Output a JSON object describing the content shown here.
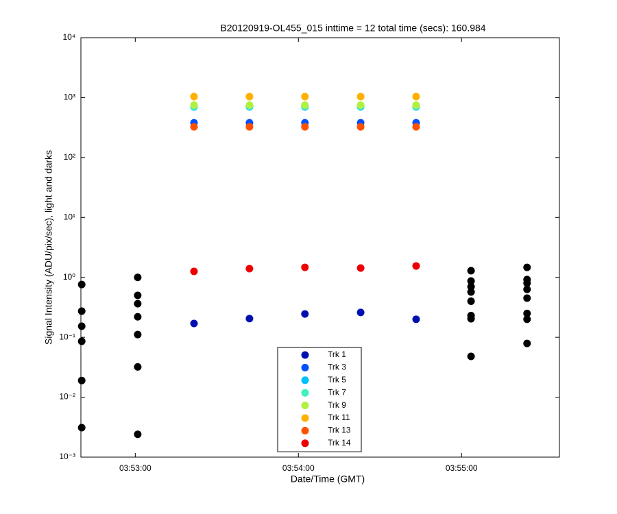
{
  "chart_data": {
    "type": "scatter",
    "title": "B20120919-OL455_015 inttime = 12 total time (secs): 160.984",
    "x_label": "Date/Time (GMT)",
    "y_label": "Signal Intensity (ADU/pix/sec), light and darks",
    "log_y": true,
    "grid": false,
    "legend": "bottom",
    "xlim": [
      13960,
      14136
    ],
    "xticks": [
      {
        "value": 13980,
        "label": "03:53:00"
      },
      {
        "value": 14040,
        "label": "03:54:00"
      },
      {
        "value": 14100,
        "label": "03:55:00"
      }
    ],
    "ylim": [
      0.001,
      10000
    ],
    "yticks": [
      {
        "value": 0.001,
        "label": "10⁻³"
      },
      {
        "value": 0.01,
        "label": "10⁻²"
      },
      {
        "value": 0.1,
        "label": "10⁻¹"
      },
      {
        "value": 1,
        "label": "10⁰"
      },
      {
        "value": 10,
        "label": "10¹"
      },
      {
        "value": 100,
        "label": "10²"
      },
      {
        "value": 1000,
        "label": "10³"
      },
      {
        "value": 10000,
        "label": "10⁴"
      }
    ],
    "series": [
      {
        "color": "#000000",
        "x": [
          13960.3,
          13960.3,
          13960.3,
          13960.3,
          13960.3,
          13960.3,
          13980.9,
          13980.9,
          13980.9,
          13980.9,
          13980.9,
          13980.9,
          13980.9,
          14103.5,
          14103.5,
          14103.5,
          14103.5,
          14103.5,
          14103.5,
          14103.5,
          14103.5,
          14124.1,
          14124.1,
          14124.1,
          14124.1,
          14124.1,
          14124.1,
          14124.1,
          14124.1
        ],
        "values": [
          0.76,
          0.273,
          0.153,
          0.0857,
          0.019,
          0.0031,
          1.0,
          0.5,
          0.364,
          0.22,
          0.111,
          0.032,
          0.0024,
          1.29,
          0.87,
          0.7,
          0.57,
          0.4,
          0.23,
          0.204,
          0.048,
          1.47,
          0.92,
          0.8,
          0.63,
          0.45,
          0.25,
          0.2,
          0.079
        ]
      },
      {
        "name": "Trk 1",
        "color": "#0010b0",
        "x": [
          14001.6,
          14022,
          14042.4,
          14062.9,
          14083.3
        ],
        "values": [
          0.17,
          0.205,
          0.245,
          0.26,
          0.2
        ]
      },
      {
        "name": "Trk 3",
        "color": "#0050ff",
        "x": [
          14001.6,
          14022,
          14042.4,
          14062.9,
          14083.3
        ],
        "values": [
          380,
          380,
          380,
          380,
          380
        ]
      },
      {
        "name": "Trk 5",
        "color": "#00c0ff",
        "x": [
          14001.6,
          14022,
          14042.4,
          14062.9,
          14083.3
        ],
        "values": [
          700,
          700,
          700,
          700,
          700
        ]
      },
      {
        "name": "Trk 7",
        "color": "#40f0c0",
        "x": [
          14001.6,
          14022,
          14042.4,
          14062.9,
          14083.3
        ],
        "values": [
          720,
          720,
          720,
          720,
          720
        ]
      },
      {
        "name": "Trk 9",
        "color": "#b0f040",
        "x": [
          14001.6,
          14022,
          14042.4,
          14062.9,
          14083.3
        ],
        "values": [
          750,
          750,
          750,
          750,
          750
        ]
      },
      {
        "name": "Trk 11",
        "color": "#ffb000",
        "x": [
          14001.6,
          14022,
          14042.4,
          14062.9,
          14083.3
        ],
        "values": [
          1040,
          1040,
          1040,
          1040,
          1040
        ]
      },
      {
        "name": "Trk 13",
        "color": "#ff5000",
        "x": [
          14001.6,
          14022,
          14042.4,
          14062.9,
          14083.3
        ],
        "values": [
          325,
          325,
          325,
          325,
          325
        ]
      },
      {
        "name": "Trk 14",
        "color": "#ee0000",
        "x": [
          14001.6,
          14022,
          14042.4,
          14062.9,
          14083.3
        ],
        "values": [
          1.26,
          1.4,
          1.47,
          1.43,
          1.55
        ]
      }
    ]
  }
}
